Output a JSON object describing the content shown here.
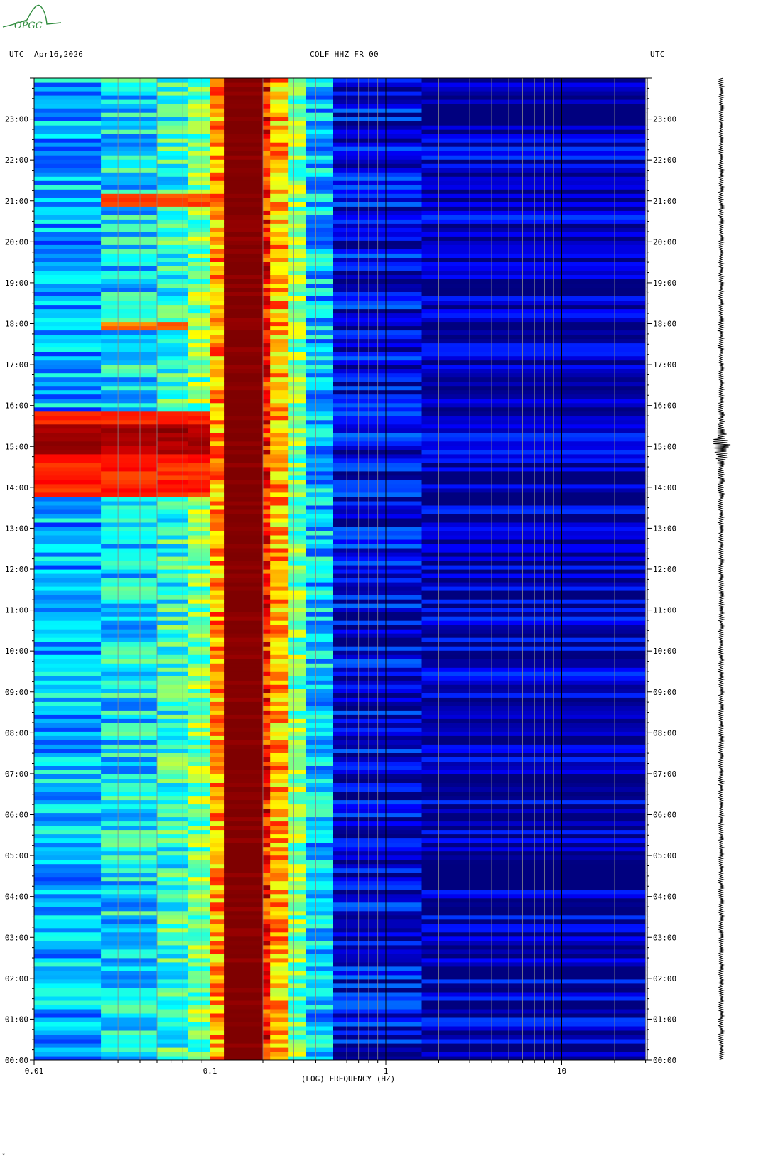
{
  "header": {
    "left_utc": "UTC",
    "date": "Apr16,2026",
    "station": "COLF HHZ FR 00",
    "right_utc": "UTC"
  },
  "logo": {
    "text": "OPGC",
    "color": "#2e8b3c"
  },
  "footer_mark": "*",
  "chart_data": {
    "type": "heatmap",
    "title": "",
    "xlabel": "(LOG) FREQUENCY (HZ)",
    "ylabel": "",
    "x_scale": "log",
    "xlim": [
      0.01,
      30
    ],
    "ylim_hours": [
      0,
      24
    ],
    "x_ticks": [
      {
        "value": 0.01,
        "label": "0.01"
      },
      {
        "value": 0.1,
        "label": "0.1"
      },
      {
        "value": 1,
        "label": "1"
      },
      {
        "value": 10,
        "label": "10"
      }
    ],
    "y_ticks": [
      "00:00",
      "01:00",
      "02:00",
      "03:00",
      "04:00",
      "05:00",
      "06:00",
      "07:00",
      "08:00",
      "09:00",
      "10:00",
      "11:00",
      "12:00",
      "13:00",
      "14:00",
      "15:00",
      "16:00",
      "17:00",
      "18:00",
      "19:00",
      "20:00",
      "21:00",
      "22:00",
      "23:00"
    ],
    "colormap": [
      "#00007f",
      "#0000ff",
      "#0080ff",
      "#00ffff",
      "#80ff80",
      "#ffff00",
      "#ff8000",
      "#ff0000",
      "#7f0000"
    ],
    "bands": [
      {
        "f_min": 0.01,
        "f_max": 0.024,
        "level": 0.3
      },
      {
        "f_min": 0.024,
        "f_max": 0.05,
        "level": 0.36
      },
      {
        "f_min": 0.05,
        "f_max": 0.075,
        "level": 0.42
      },
      {
        "f_min": 0.075,
        "f_max": 0.1,
        "level": 0.5
      },
      {
        "f_min": 0.1,
        "f_max": 0.12,
        "level": 0.72
      },
      {
        "f_min": 0.12,
        "f_max": 0.2,
        "level": 1.0
      },
      {
        "f_min": 0.2,
        "f_max": 0.22,
        "level": 0.85
      },
      {
        "f_min": 0.22,
        "f_max": 0.28,
        "level": 0.7
      },
      {
        "f_min": 0.28,
        "f_max": 0.35,
        "level": 0.5
      },
      {
        "f_min": 0.35,
        "f_max": 0.5,
        "level": 0.32
      },
      {
        "f_min": 0.5,
        "f_max": 1.6,
        "level": 0.1
      },
      {
        "f_min": 1.6,
        "f_max": 30,
        "level": 0.05
      }
    ],
    "events": [
      {
        "time_start": 13.8,
        "time_end": 15.9,
        "f_min": 0.01,
        "f_max": 0.1,
        "level": 0.88
      },
      {
        "time_start": 14.8,
        "time_end": 15.5,
        "f_min": 0.01,
        "f_max": 0.1,
        "level": 1.0
      },
      {
        "time_start": 20.9,
        "time_end": 21.2,
        "f_min": 0.024,
        "f_max": 0.1,
        "level": 0.85
      },
      {
        "time_start": 17.8,
        "time_end": 18.0,
        "f_min": 0.024,
        "f_max": 0.075,
        "level": 0.8
      }
    ],
    "seismogram_peak_hours": [
      15.0,
      14.9,
      15.2
    ]
  }
}
